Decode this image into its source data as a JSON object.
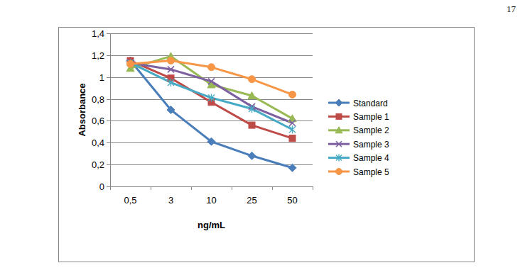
{
  "page_number": 17,
  "chart_data": {
    "type": "line",
    "x_label": "ng/mL",
    "y_label": "Absorbance",
    "categories": [
      "0,5",
      "3",
      "10",
      "25",
      "50"
    ],
    "ylim": [
      0,
      1.4
    ],
    "yticks": [
      0,
      {
        "value": 0.2,
        "label": "0,2"
      },
      {
        "value": 0.4,
        "label": "0,4"
      },
      {
        "value": 0.6,
        "label": "0,6"
      },
      {
        "value": 0.8,
        "label": "0,8"
      },
      1,
      {
        "value": 1.2,
        "label": "1,2"
      },
      {
        "value": 1.4,
        "label": "1,4"
      }
    ],
    "grid": true,
    "legend": "right",
    "series": [
      {
        "name": "Standard",
        "color": "#4a7ebb",
        "marker": "diamond",
        "values": [
          1.15,
          0.7,
          0.41,
          0.28,
          0.17
        ]
      },
      {
        "name": "Sample 1",
        "color": "#be4b48",
        "marker": "square",
        "values": [
          1.15,
          0.99,
          0.77,
          0.56,
          0.44
        ]
      },
      {
        "name": "Sample 2",
        "color": "#98b954",
        "marker": "triangle",
        "values": [
          1.08,
          1.19,
          0.93,
          0.83,
          0.62
        ]
      },
      {
        "name": "Sample 3",
        "color": "#7d60a0",
        "marker": "x",
        "values": [
          1.13,
          1.07,
          0.96,
          0.73,
          0.58
        ]
      },
      {
        "name": "Sample 4",
        "color": "#46aac5",
        "marker": "star",
        "values": [
          1.13,
          0.95,
          0.81,
          0.71,
          0.52
        ]
      },
      {
        "name": "Sample 5",
        "color": "#f79646",
        "marker": "circle",
        "values": [
          1.12,
          1.15,
          1.09,
          0.98,
          0.84
        ]
      }
    ]
  }
}
